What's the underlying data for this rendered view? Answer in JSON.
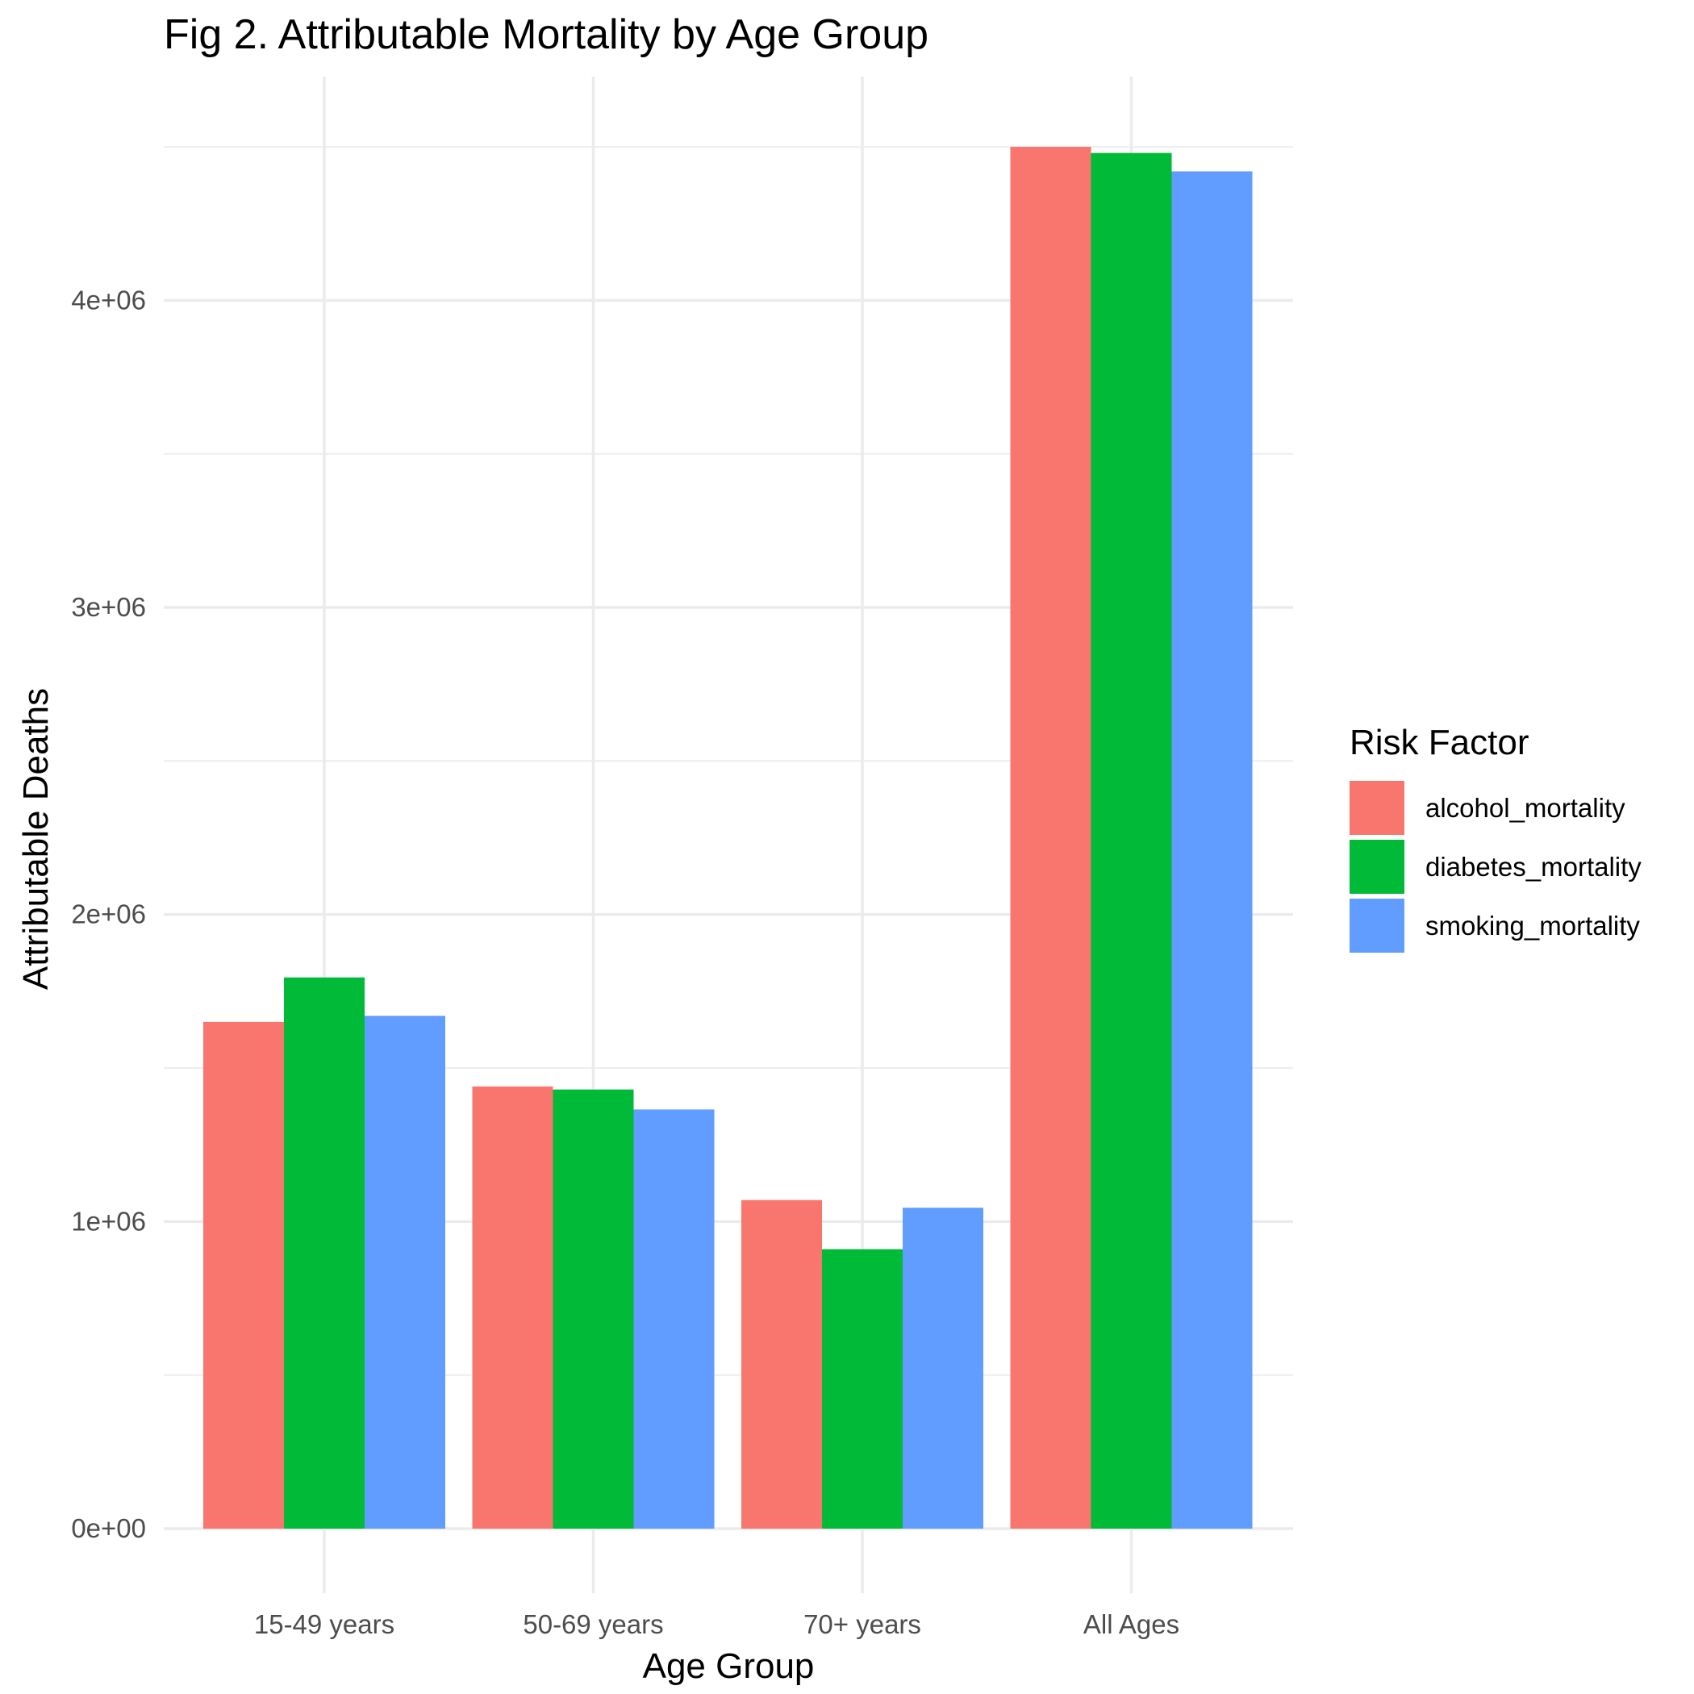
{
  "chart_data": {
    "type": "bar",
    "title": "Fig 2. Attributable Mortality by Age Group",
    "xlabel": "Age Group",
    "ylabel": "Attributable Deaths",
    "categories": [
      "15-49 years",
      "50-69 years",
      "70+ years",
      "All Ages"
    ],
    "series": [
      {
        "name": "alcohol_mortality",
        "color": "#F8766D",
        "values": [
          1650000,
          1440000,
          1070000,
          4500000
        ]
      },
      {
        "name": "diabetes_mortality",
        "color": "#00BA38",
        "values": [
          1795000,
          1430000,
          910000,
          4480000
        ]
      },
      {
        "name": "smoking_mortality",
        "color": "#619CFF",
        "values": [
          1670000,
          1365000,
          1045000,
          4420000
        ]
      }
    ],
    "ylim": [
      0,
      4500000
    ],
    "yticks": [
      0,
      1000000,
      2000000,
      3000000,
      4000000
    ],
    "ytick_labels": [
      "0e+00",
      "1e+06",
      "2e+06",
      "3e+06",
      "4e+06"
    ],
    "legend_title": "Risk Factor",
    "legend_position": "right",
    "grid": true
  }
}
